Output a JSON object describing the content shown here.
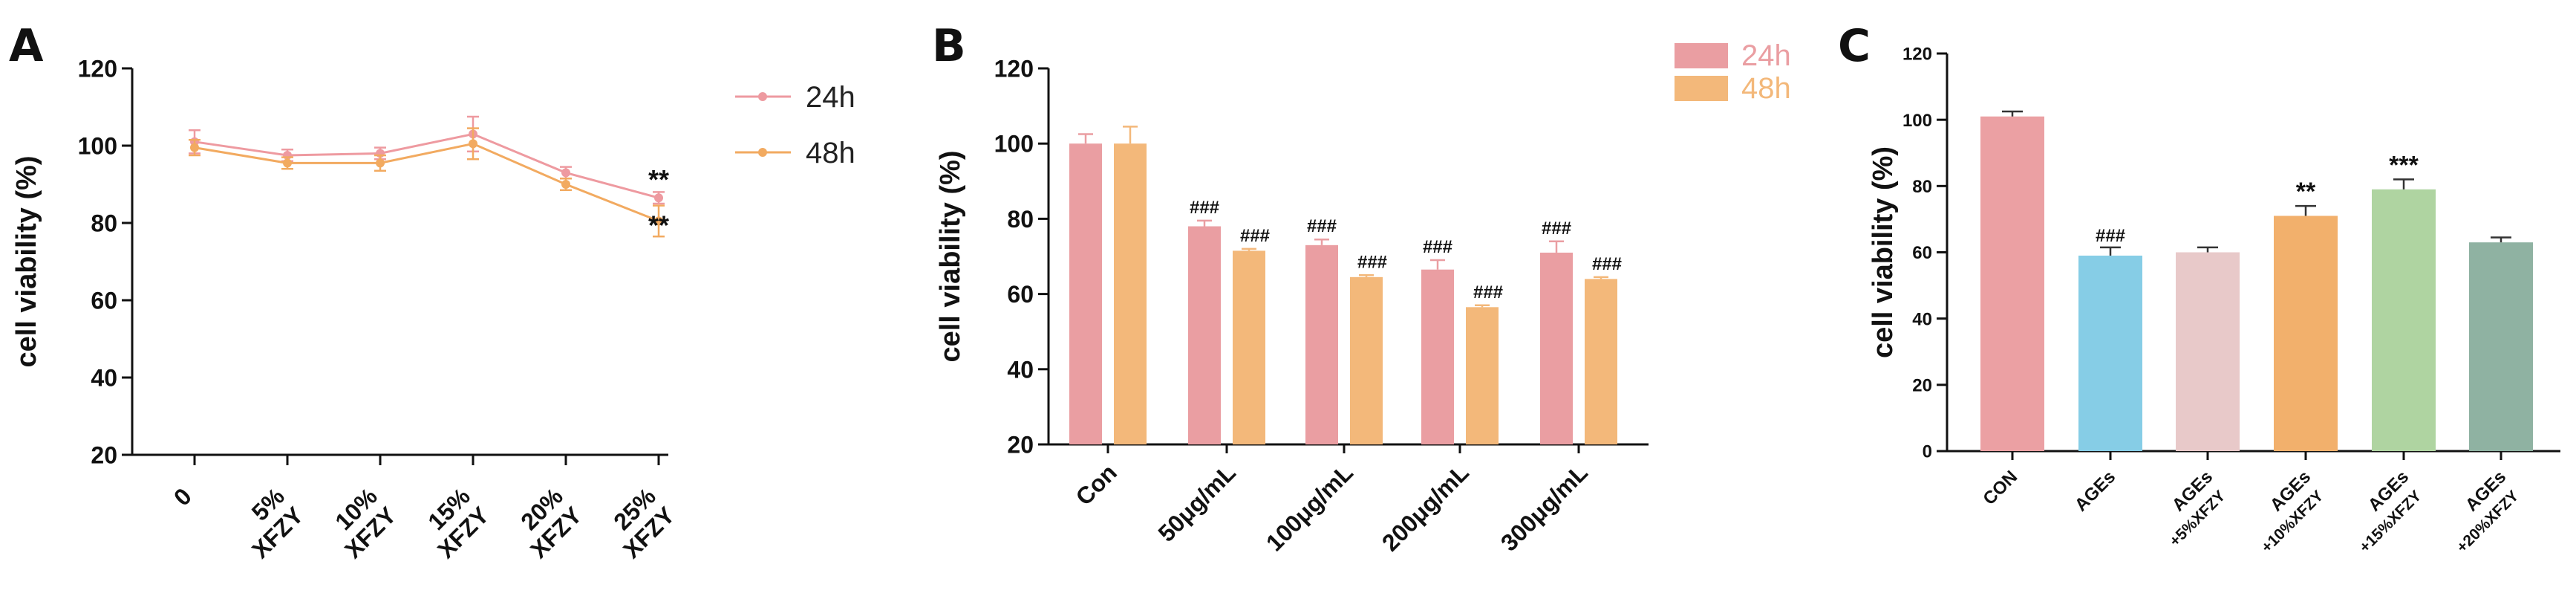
{
  "chart_data": [
    {
      "panel": "A",
      "type": "line",
      "ylabel": "cell viability (%)",
      "ylim": [
        20,
        120
      ],
      "yticks": [
        20,
        40,
        60,
        80,
        100,
        120
      ],
      "categories": [
        [
          "0"
        ],
        [
          "5%",
          "XFZY"
        ],
        [
          "10%",
          "XFZY"
        ],
        [
          "15%",
          "XFZY"
        ],
        [
          "20%",
          "XFZY"
        ],
        [
          "25%",
          "XFZY"
        ]
      ],
      "series": [
        {
          "name": "24h",
          "color": "#ee9aa0",
          "values": [
            101,
            97.5,
            98,
            103,
            93,
            86.5
          ],
          "errors": [
            3,
            1.5,
            1.5,
            4.5,
            1.5,
            1.5
          ],
          "annotations": [
            "",
            "",
            "",
            "",
            "",
            "**"
          ]
        },
        {
          "name": "48h",
          "color": "#f2aa60",
          "values": [
            99.5,
            95.5,
            95.5,
            100.5,
            90,
            80.5
          ],
          "errors": [
            2,
            1.5,
            2,
            4,
            1.5,
            4
          ],
          "annotations": [
            "",
            "",
            "",
            "",
            "",
            "**"
          ]
        }
      ],
      "legend": "top-right"
    },
    {
      "panel": "B",
      "type": "bar",
      "ylabel": "cell viability (%)",
      "ylim": [
        20,
        120
      ],
      "yticks": [
        20,
        40,
        60,
        80,
        100,
        120
      ],
      "categories": [
        "Con",
        "50μg/mL",
        "100μg/mL",
        "200μg/mL",
        "300μg/mL"
      ],
      "series": [
        {
          "name": "24h",
          "color": "#ea9ea2",
          "values": [
            100,
            78,
            73,
            66.5,
            71
          ],
          "errors": [
            2.5,
            1.5,
            1.5,
            2.5,
            3
          ],
          "annotations": [
            "",
            "###",
            "###",
            "###",
            "###"
          ]
        },
        {
          "name": "48h",
          "color": "#f3b87a",
          "values": [
            100,
            71.5,
            64.5,
            56.5,
            64
          ],
          "errors": [
            4.5,
            0.5,
            0.5,
            0.5,
            0.5
          ],
          "annotations": [
            "",
            "###",
            "###",
            "###",
            "###"
          ]
        }
      ],
      "legend": "top-right"
    },
    {
      "panel": "C",
      "type": "bar",
      "ylabel": "cell viability (%)",
      "ylim": [
        0,
        120
      ],
      "yticks": [
        0,
        20,
        40,
        60,
        80,
        100,
        120
      ],
      "categories": [
        [
          "CON"
        ],
        [
          "AGEs"
        ],
        [
          "AGEs",
          "+5%XFZY"
        ],
        [
          "AGEs",
          "+10%XFZY"
        ],
        [
          "AGEs",
          "+15%XFZY"
        ],
        [
          "AGEs",
          "+20%XFZY"
        ]
      ],
      "values": [
        101,
        59,
        60,
        71,
        79,
        63
      ],
      "errors": [
        1.5,
        2.5,
        1.5,
        3,
        3,
        1.5
      ],
      "colors": [
        "#eba0a3",
        "#86cde6",
        "#e8c9c9",
        "#f2b06c",
        "#afd4a1",
        "#8fb2a2"
      ],
      "annotations": [
        "",
        "###",
        "",
        "**",
        "***",
        ""
      ]
    }
  ]
}
